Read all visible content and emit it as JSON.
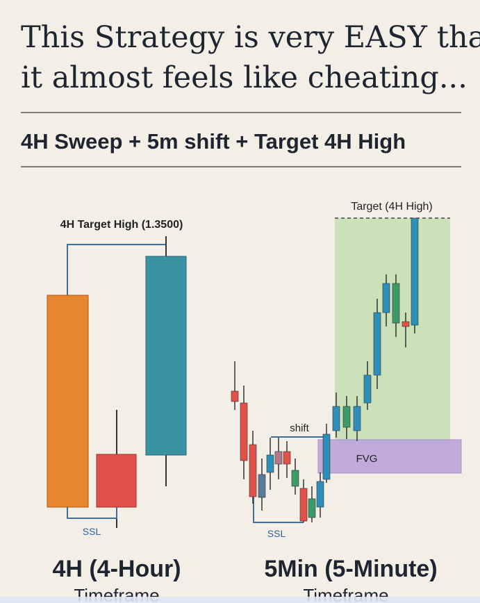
{
  "header": {
    "title_lines": [
      "This Strategy is very EASY that",
      "it almost feels like cheating..."
    ],
    "subtitle": "4H Sweep + 5m shift + Target 4H High"
  },
  "left_panel": {
    "target_label": "4H Target High (1.3500)",
    "ssl_label": "SSL",
    "caption": "4H (4-Hour)",
    "caption_sub": "Timeframe"
  },
  "right_panel": {
    "target_label": "Target (4H High)",
    "shift_label": "shift",
    "fvg_label": "FVG",
    "ssl_label": "SSL",
    "caption": "5Min (5-Minute)",
    "caption_sub": "Timeframe"
  }
}
